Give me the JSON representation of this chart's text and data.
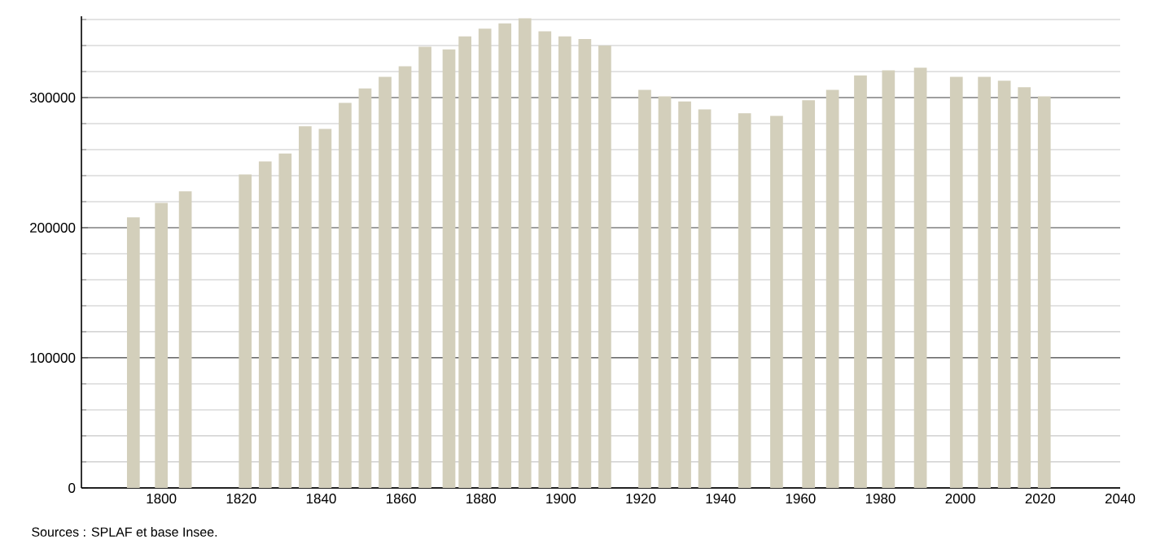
{
  "chart_data": {
    "type": "bar",
    "x": [
      1793,
      1800,
      1806,
      1821,
      1826,
      1831,
      1836,
      1841,
      1846,
      1851,
      1856,
      1861,
      1866,
      1872,
      1876,
      1881,
      1886,
      1891,
      1896,
      1901,
      1906,
      1911,
      1921,
      1926,
      1931,
      1936,
      1946,
      1954,
      1962,
      1968,
      1975,
      1982,
      1990,
      1999,
      2006,
      2011,
      2016,
      2021
    ],
    "values": [
      208000,
      219000,
      228000,
      241000,
      251000,
      257000,
      278000,
      276000,
      296000,
      307000,
      316000,
      324000,
      339000,
      337000,
      347000,
      353000,
      357000,
      361000,
      351000,
      347000,
      345000,
      340000,
      306000,
      301000,
      297000,
      291000,
      288000,
      286000,
      298000,
      306000,
      317000,
      321000,
      323000,
      316000,
      316000,
      313000,
      308000,
      301000
    ],
    "color": "#d3cfbb",
    "xlim": [
      1780,
      2040
    ],
    "xticks": [
      1800,
      1820,
      1840,
      1860,
      1880,
      1900,
      1920,
      1940,
      1960,
      1980,
      2000,
      2020,
      2040
    ],
    "ylim": [
      0,
      362500
    ],
    "yticks": [
      0,
      {
        "value": 20000,
        "label": null
      },
      {
        "value": 40000,
        "label": null
      },
      {
        "value": 60000,
        "label": null
      },
      {
        "value": 80000,
        "label": null
      },
      100000,
      {
        "value": 120000,
        "label": null
      },
      {
        "value": 140000,
        "label": null
      },
      {
        "value": 160000,
        "label": null
      },
      {
        "value": 180000,
        "label": null
      },
      200000,
      {
        "value": 220000,
        "label": null
      },
      {
        "value": 240000,
        "label": null
      },
      {
        "value": 260000,
        "label": null
      },
      {
        "value": 280000,
        "label": null
      },
      300000,
      {
        "value": 320000,
        "label": null
      },
      {
        "value": 340000,
        "label": null
      },
      {
        "value": 360000,
        "label": null
      }
    ],
    "grid": "y",
    "annotations": [
      "Sources : SPLAF et base Insee."
    ]
  }
}
